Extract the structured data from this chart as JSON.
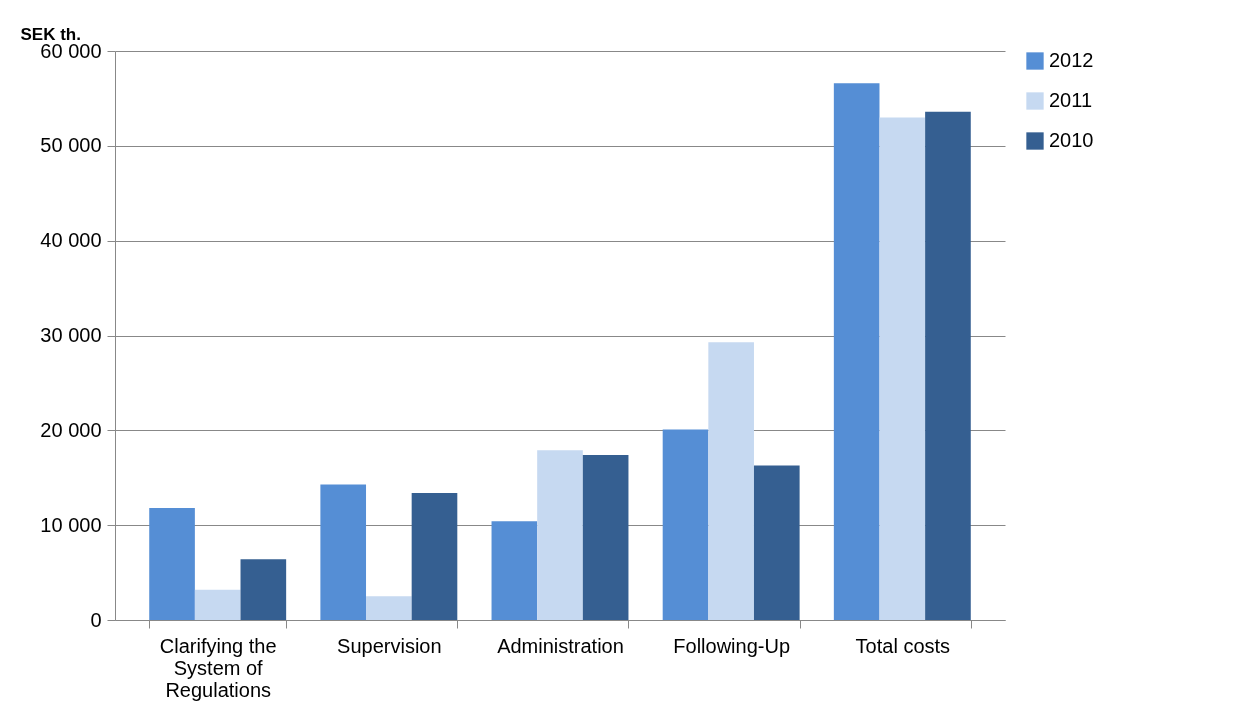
{
  "chart_data": {
    "type": "bar",
    "ylabel": "SEK th.",
    "categories": [
      "Clarifying the System of Regulations",
      "Supervision",
      "Administration",
      "Following-Up",
      "Total costs"
    ],
    "series": [
      {
        "name": "2012",
        "color": "#558ed5",
        "values": [
          11800,
          14300,
          10400,
          20100,
          56600
        ]
      },
      {
        "name": "2011",
        "color": "#c6d9f1",
        "values": [
          3200,
          2500,
          17900,
          29300,
          53000
        ]
      },
      {
        "name": "2010",
        "color": "#355f91",
        "values": [
          6400,
          13400,
          17400,
          16300,
          53600
        ]
      }
    ],
    "ylim": [
      0,
      60000
    ],
    "yticks": [
      0,
      {
        "value": 10000,
        "label": "10 000"
      },
      {
        "value": 20000,
        "label": "20 000"
      },
      {
        "value": 30000,
        "label": "30 000"
      },
      {
        "value": 40000,
        "label": "40 000"
      },
      {
        "value": 50000,
        "label": "50 000"
      },
      {
        "value": 60000,
        "label": "60 000"
      }
    ],
    "grid": "y",
    "legend": "right"
  }
}
